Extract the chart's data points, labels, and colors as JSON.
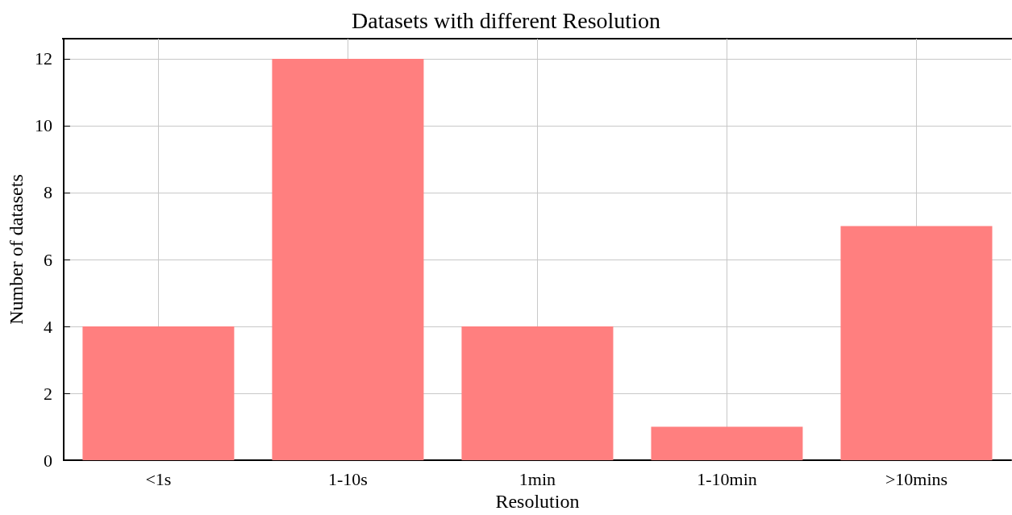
{
  "chart_data": {
    "type": "bar",
    "title": "Datasets with different Resolution",
    "xlabel": "Resolution",
    "ylabel": "Number of datasets",
    "categories": [
      "<1s",
      "1-10s",
      "1min",
      "1-10min",
      ">10mins"
    ],
    "values": [
      4,
      12,
      4,
      1,
      7
    ],
    "color": "#ff7f7f",
    "ylim": [
      0,
      12.6
    ],
    "yticks": [
      0,
      2,
      4,
      6,
      8,
      10,
      12
    ],
    "grid": true
  }
}
